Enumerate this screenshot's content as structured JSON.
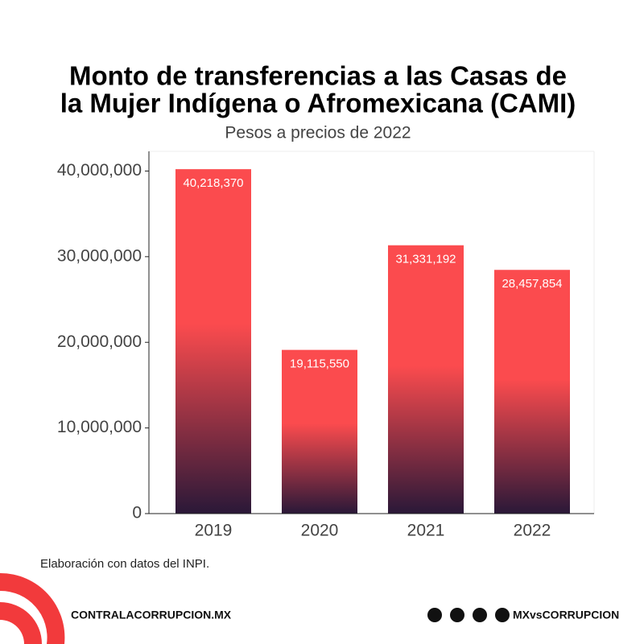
{
  "chart_data": {
    "type": "bar",
    "title": [
      "Monto de transferencias a las Casas de",
      "la Mujer Indígena o Afromexicana (CAMI)"
    ],
    "subtitle": "Pesos a precios de 2022",
    "categories": [
      "2019",
      "2020",
      "2021",
      "2022"
    ],
    "values": [
      40218370,
      19115550,
      31331192,
      28457854
    ],
    "value_labels": [
      "40,218,370",
      "19,115,550",
      "31,331,192",
      "28,457,854"
    ],
    "color": "#fb4b4e",
    "color_bottom": "#2a1838",
    "ylim": [
      0,
      42300000
    ],
    "yticks": [
      0,
      {
        "value": 10000000,
        "label": "10,000,000"
      },
      {
        "value": 20000000,
        "label": "20,000,000"
      },
      {
        "value": 30000000,
        "label": "30,000,000"
      },
      {
        "value": 40000000,
        "label": "40,000,000"
      }
    ],
    "grid": false,
    "source": "Elaboración con datos del INPI.",
    "footer_left": "CONTRALACORRUPCION.MX",
    "footer_right": "MXvsCORRUPCION"
  }
}
